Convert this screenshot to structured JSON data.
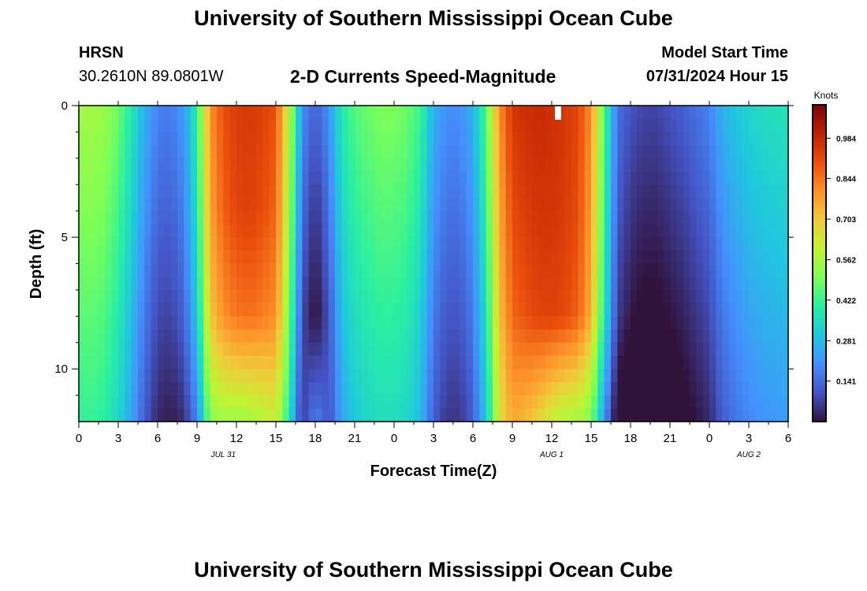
{
  "header": {
    "title": "University of Southern Mississippi Ocean Cube",
    "station": "HRSN",
    "coords": "30.2610N  89.0801W",
    "subtitle": "2-D Currents Speed-Magnitude",
    "model_start_label": "Model Start Time",
    "model_start_value": "07/31/2024 Hour 15"
  },
  "footer": {
    "title": "University of Southern Mississippi Ocean Cube"
  },
  "chart_data": {
    "type": "heatmap",
    "title": "2-D Currents Speed-Magnitude",
    "xlabel": "Forecast Time(Z)",
    "ylabel": "Depth (ft)",
    "x_tick_labels": [
      "0",
      "3",
      "6",
      "9",
      "12",
      "15",
      "18",
      "21",
      "0",
      "3",
      "6",
      "9",
      "12",
      "15",
      "18",
      "21",
      "0",
      "3",
      "6"
    ],
    "x_range_hours": [
      0,
      54
    ],
    "date_labels": [
      {
        "hour": 11,
        "text": "JUL 31"
      },
      {
        "hour": 36,
        "text": "AUG 1"
      },
      {
        "hour": 51,
        "text": "AUG 2"
      }
    ],
    "y_tick_labels": [
      "0",
      "5",
      "10"
    ],
    "y_range_ft": [
      0,
      12
    ],
    "y_inverted": true,
    "colorbar": {
      "label": "Knots",
      "ticks": [
        "0.984",
        "0.844",
        "0.703",
        "0.562",
        "0.422",
        "0.281",
        "0.141"
      ],
      "tick_values": [
        0.984,
        0.844,
        0.703,
        0.562,
        0.422,
        0.281,
        0.141
      ],
      "range": [
        0.0,
        1.1
      ],
      "colors": [
        "#30123b",
        "#4454c4",
        "#4490fe",
        "#1fc8de",
        "#29efa2",
        "#7dff56",
        "#c1f334",
        "#f1ca3a",
        "#fe922a",
        "#ea4f0d",
        "#be2102",
        "#7a0403"
      ]
    },
    "surface_speed_by_hour": [
      0.55,
      0.56,
      0.54,
      0.48,
      0.38,
      0.26,
      0.18,
      0.17,
      0.22,
      0.4,
      0.8,
      0.9,
      0.94,
      0.95,
      0.93,
      0.9,
      0.6,
      0.2,
      0.12,
      0.2,
      0.38,
      0.45,
      0.48,
      0.5,
      0.5,
      0.48,
      0.42,
      0.26,
      0.2,
      0.2,
      0.26,
      0.45,
      0.8,
      0.95,
      0.97,
      0.98,
      0.97,
      0.95,
      0.92,
      0.8,
      0.45,
      0.15,
      0.1,
      0.08,
      0.08,
      0.1,
      0.12,
      0.15,
      0.18,
      0.26,
      0.3,
      0.33,
      0.35,
      0.36,
      0.37
    ],
    "depth_profile": {
      "depth_ft": [
        0,
        4,
        8,
        12
      ],
      "jul31_peak_speed": [
        0.95,
        0.93,
        0.85,
        0.55
      ],
      "aug1_peak_speed": [
        0.98,
        0.97,
        0.94,
        0.6
      ],
      "hour18_jul31_speed": [
        0.15,
        0.08,
        0.03,
        0.2
      ]
    }
  }
}
